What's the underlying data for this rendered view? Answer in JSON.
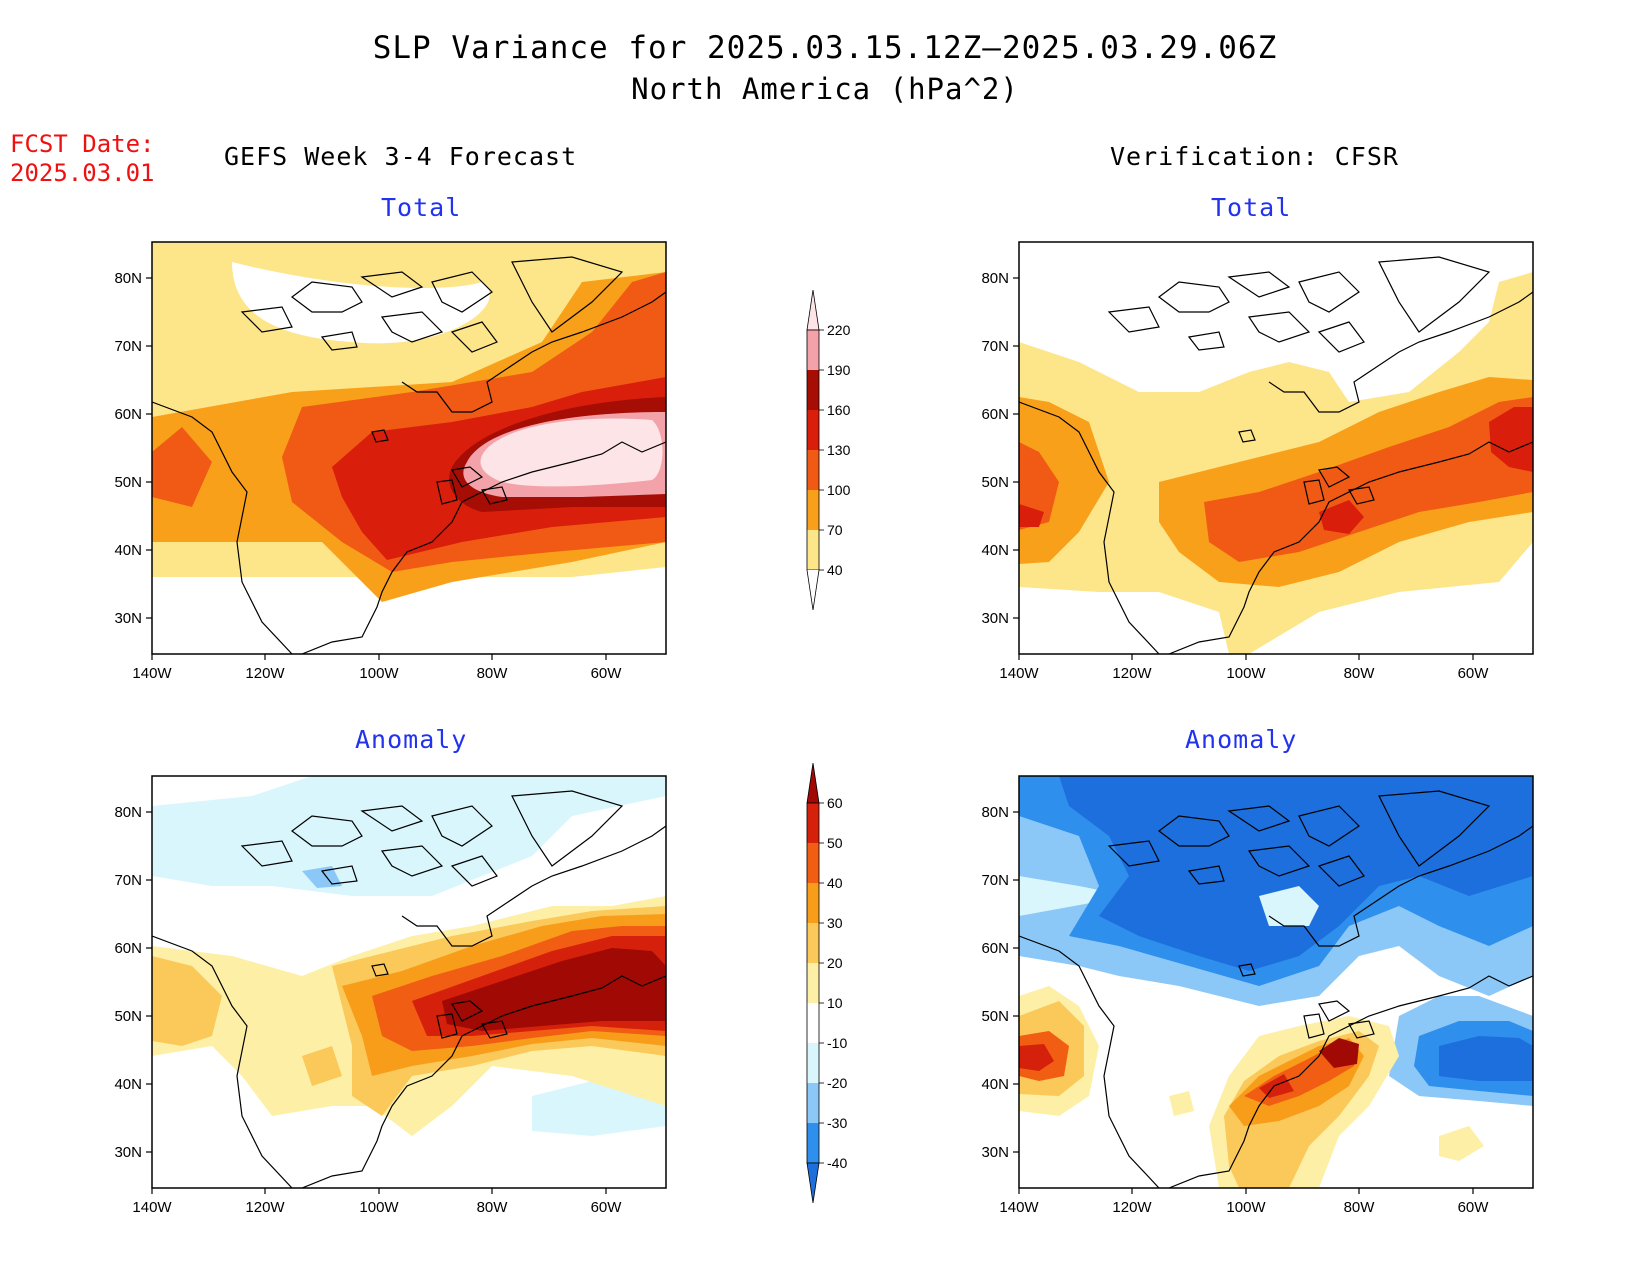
{
  "title": {
    "line1": "SLP Variance for 2025.03.15.12Z–2025.03.29.06Z",
    "line2": "North America (hPa^2)"
  },
  "fcst_date": {
    "label": "FCST Date:",
    "value": "2025.03.01"
  },
  "left_header": "GEFS Week 3-4 Forecast",
  "right_header": "Verification: CFSR",
  "panels": {
    "fcst_total": {
      "subtitle": "Total"
    },
    "ver_total": {
      "subtitle": "Total"
    },
    "fcst_anom": {
      "subtitle": "Anomaly"
    },
    "ver_anom": {
      "subtitle": "Anomaly"
    }
  },
  "axes": {
    "lon_ticks": [
      "140W",
      "120W",
      "100W",
      "80W",
      "60W"
    ],
    "lat_ticks": [
      "80N",
      "70N",
      "60N",
      "50N",
      "40N",
      "30N"
    ]
  },
  "colorbar_total": {
    "levels": [
      "40",
      "70",
      "100",
      "130",
      "160",
      "190",
      "220"
    ],
    "colors": [
      "#fde68a",
      "#f9a01b",
      "#f05a14",
      "#d91e0b",
      "#a50d05",
      "#f2a2a8",
      "#fde4e6"
    ]
  },
  "colorbar_anomaly": {
    "levels": [
      "-40",
      "-30",
      "-20",
      "-10",
      "10",
      "20",
      "30",
      "40",
      "50",
      "60"
    ],
    "colors": [
      "#1c6fdc",
      "#2e8fec",
      "#8cc8f7",
      "#d9f6fc",
      "#ffffff",
      "#fdf0a6",
      "#fbc85a",
      "#f79d1a",
      "#f05d13",
      "#d5210b",
      "#a00904"
    ]
  }
}
